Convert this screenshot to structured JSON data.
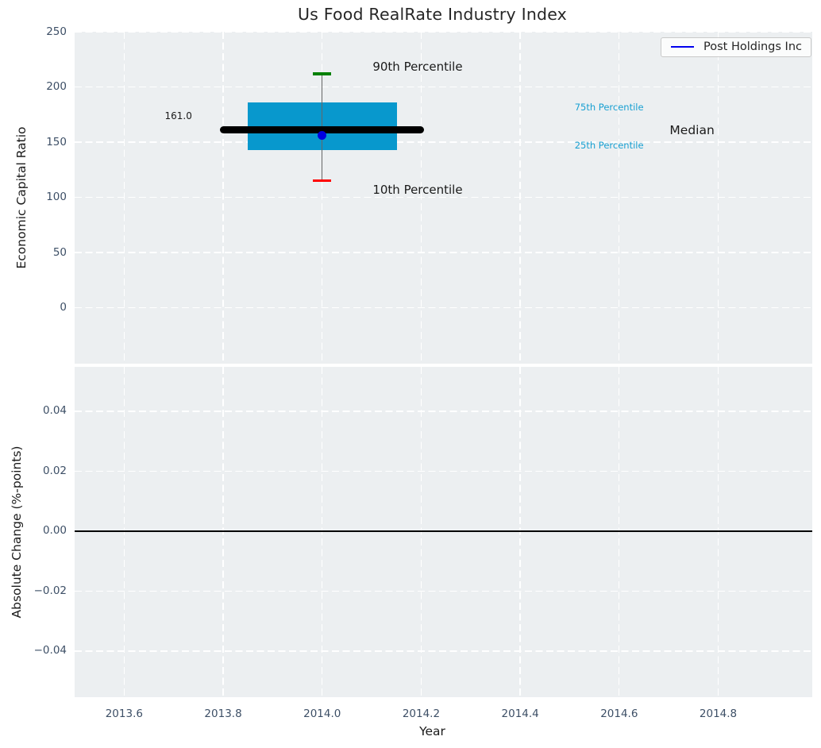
{
  "figure": {
    "title": "Us Food RealRate Industry Index",
    "plot_background": "#eceff1",
    "grid_color": "#ffffff",
    "tick_label_color": "#3d4f66",
    "axis_label_color": "#1a1a1a",
    "title_color": "#262626"
  },
  "legend": {
    "label": "Post Holdings Inc",
    "line_color": "#0000ee",
    "position": "upper right"
  },
  "x_axis": {
    "label": "Year",
    "xlim": [
      2013.5,
      2014.99
    ],
    "ticks": [
      {
        "v": 2013.6,
        "label": "2013.6"
      },
      {
        "v": 2013.8,
        "label": "2013.8"
      },
      {
        "v": 2014.0,
        "label": "2014.0"
      },
      {
        "v": 2014.2,
        "label": "2014.2"
      },
      {
        "v": 2014.4,
        "label": "2014.4"
      },
      {
        "v": 2014.6,
        "label": "2014.6"
      },
      {
        "v": 2014.8,
        "label": "2014.8"
      }
    ]
  },
  "chart_data": [
    {
      "type": "boxplot",
      "panel": "top",
      "title": "Us Food RealRate Industry Index",
      "ylabel": "Economic Capital Ratio",
      "ylim": [
        -50.7,
        250
      ],
      "yticks": [
        {
          "v": 0,
          "label": "0"
        },
        {
          "v": 50,
          "label": "50"
        },
        {
          "v": 100,
          "label": "100"
        },
        {
          "v": 150,
          "label": "150"
        },
        {
          "v": 200,
          "label": "200"
        },
        {
          "v": 250,
          "label": "250"
        }
      ],
      "grid": "white dashed",
      "series": [
        {
          "name": "Post Holdings Inc",
          "x": 2014.0,
          "p10": 115,
          "p25": 143,
          "median": 161.0,
          "p75": 186,
          "p90": 212,
          "company_value": 156,
          "box_color": "#0898cd",
          "median_color": "#000000",
          "whisker_color": "#666666",
          "p90_cap_color": "#008000",
          "p10_cap_color": "#ff0000",
          "marker_color": "#0000e0",
          "box_half_width": 0.151,
          "median_half_width": 0.206,
          "cap_half_width": 0.0185
        }
      ],
      "annotations": [
        {
          "id": "p90-percentile-label",
          "text": "90th Percentile",
          "x": 2014.102,
          "y": 218.5,
          "color": "#1a1a1a",
          "size": 15
        },
        {
          "id": "p10-percentile-label",
          "text": "10th Percentile",
          "x": 2014.102,
          "y": 107.0,
          "color": "#1a1a1a",
          "size": 15
        },
        {
          "id": "p75-percentile-label",
          "text": "75th Percentile",
          "x": 2014.51,
          "y": 181.8,
          "color": "#18a0d2",
          "size": 11.5
        },
        {
          "id": "p25-percentile-label",
          "text": "25th Percentile",
          "x": 2014.51,
          "y": 147.0,
          "color": "#18a0d2",
          "size": 11.5
        },
        {
          "id": "median-label",
          "text": "Median",
          "x": 2014.702,
          "y": 160.8,
          "color": "#1a1a1a",
          "size": 15.5
        },
        {
          "id": "median-value-label",
          "text": "161.0",
          "x": 2013.682,
          "y": 173.8,
          "color": "#1a1a1a",
          "size": 12
        }
      ]
    },
    {
      "type": "line",
      "panel": "bottom",
      "ylabel": "Absolute Change (%-points)",
      "ylim": [
        -0.0554,
        0.0548
      ],
      "yticks": [
        {
          "v": 0.04,
          "label": "0.04"
        },
        {
          "v": 0.02,
          "label": "0.02"
        },
        {
          "v": 0.0,
          "label": "0.00"
        },
        {
          "v": -0.02,
          "label": "−0.02"
        },
        {
          "v": -0.04,
          "label": "−0.04"
        }
      ],
      "grid": "white dashed",
      "zero_line": {
        "y": 0.0,
        "color": "#000000"
      },
      "series": []
    }
  ]
}
